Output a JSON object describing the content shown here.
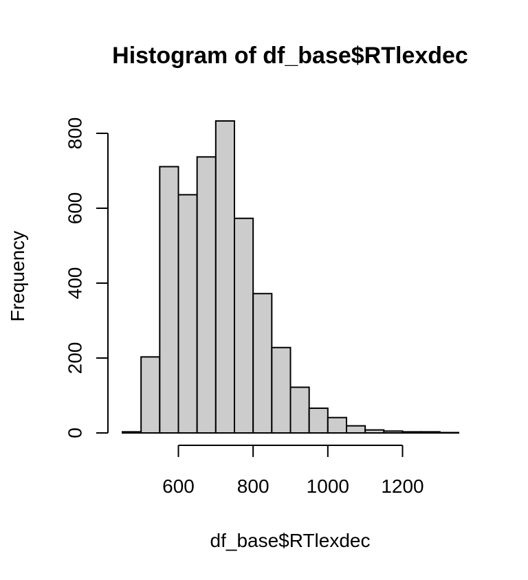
{
  "chart_data": {
    "type": "bar",
    "title": "Histogram of df_base$RTlexdec",
    "xlabel": "df_base$RTlexdec",
    "ylabel": "Frequency",
    "bin_edges": [
      450,
      500,
      550,
      600,
      650,
      700,
      750,
      800,
      850,
      900,
      950,
      1000,
      1050,
      1100,
      1150,
      1200,
      1250,
      1300,
      1350
    ],
    "values": [
      3,
      203,
      711,
      636,
      737,
      833,
      573,
      372,
      228,
      122,
      66,
      41,
      19,
      8,
      5,
      3,
      3,
      1
    ],
    "xlim": [
      450,
      1350
    ],
    "ylim": [
      0,
      833
    ],
    "x_ticks": [
      600,
      800,
      1000,
      1200
    ],
    "y_ticks": [
      0,
      200,
      400,
      600,
      800
    ],
    "x_tick_labels": [
      "600",
      "800",
      "1000",
      "1200"
    ],
    "y_tick_labels": [
      "0",
      "200",
      "400",
      "600",
      "800"
    ],
    "bar_fill": "#cccccc",
    "grid": false
  }
}
